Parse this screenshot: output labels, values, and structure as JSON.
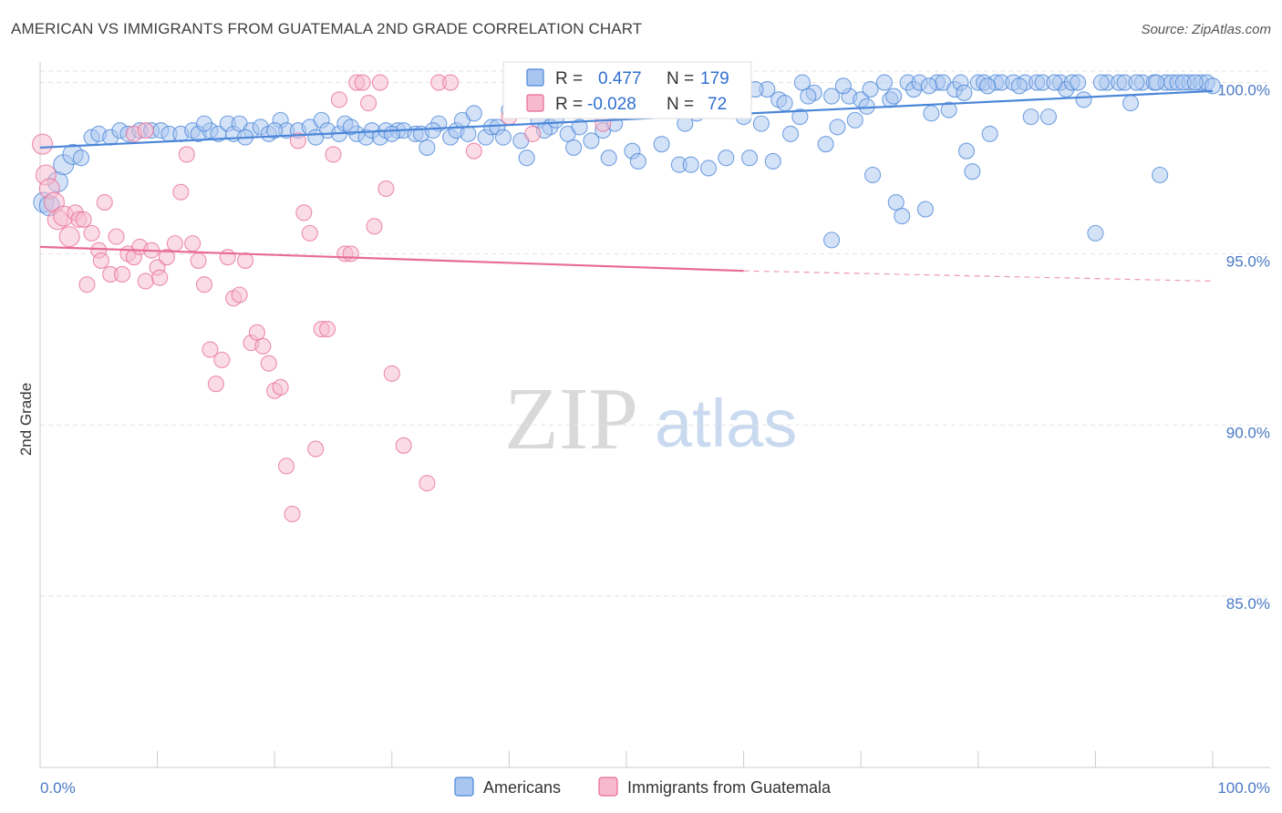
{
  "title": "AMERICAN VS IMMIGRANTS FROM GUATEMALA 2ND GRADE CORRELATION CHART",
  "source": "Source: ZipAtlas.com",
  "watermark": {
    "zip": "ZIP",
    "atlas": "atlas"
  },
  "legend_top": {
    "rows": [
      {
        "r_label": "R =",
        "r_value": "0.477",
        "n_label": "N =",
        "n_value": "179",
        "color": "#8bb2ea"
      },
      {
        "r_label": "R =",
        "r_value": "-0.028",
        "n_label": "N =",
        "n_value": "72",
        "color": "#f1a5bf"
      }
    ]
  },
  "chart_data": {
    "type": "scatter",
    "ylabel": "2nd Grade",
    "xlim": [
      0,
      100
    ],
    "ylim": [
      80.0,
      100.6
    ],
    "x_tick_labels": {
      "left": "0.0%",
      "right": "100.0%"
    },
    "y_ticks": [
      {
        "value": 100,
        "label": "100.0%"
      },
      {
        "value": 95,
        "label": "95.0%"
      },
      {
        "value": 90,
        "label": "90.0%"
      },
      {
        "value": 85,
        "label": "85.0%"
      }
    ],
    "grid": "horizontal dashed",
    "legend_position": "bottom",
    "series": [
      {
        "name": "Americans",
        "color": "#4a86d8",
        "fill": "#a9c6f0",
        "r": 0.477,
        "n": 179,
        "trend": {
          "x": [
            0,
            100
          ],
          "y": [
            98.1,
            99.75
          ]
        },
        "points": [
          [
            0.3,
            96.5
          ],
          [
            0.8,
            96.4
          ],
          [
            1.5,
            97.1
          ],
          [
            2,
            97.6
          ],
          [
            2.8,
            97.9
          ],
          [
            3.5,
            97.8
          ],
          [
            4.4,
            98.4
          ],
          [
            5,
            98.5
          ],
          [
            6,
            98.4
          ],
          [
            6.8,
            98.6
          ],
          [
            7.5,
            98.5
          ],
          [
            8.5,
            98.6
          ],
          [
            9.5,
            98.6
          ],
          [
            10.3,
            98.6
          ],
          [
            11,
            98.5
          ],
          [
            12,
            98.5
          ],
          [
            13,
            98.6
          ],
          [
            13.5,
            98.5
          ],
          [
            14.5,
            98.6
          ],
          [
            15.2,
            98.5
          ],
          [
            16,
            98.8
          ],
          [
            16.5,
            98.5
          ],
          [
            17,
            98.8
          ],
          [
            18,
            98.6
          ],
          [
            18.8,
            98.7
          ],
          [
            19.5,
            98.5
          ],
          [
            20.5,
            98.9
          ],
          [
            21,
            98.6
          ],
          [
            22,
            98.6
          ],
          [
            23,
            98.7
          ],
          [
            24,
            98.9
          ],
          [
            24.5,
            98.6
          ],
          [
            25.5,
            98.5
          ],
          [
            26,
            98.8
          ],
          [
            27,
            98.5
          ],
          [
            27.8,
            98.4
          ],
          [
            28.3,
            98.6
          ],
          [
            29,
            98.4
          ],
          [
            29.5,
            98.6
          ],
          [
            30.5,
            98.6
          ],
          [
            31,
            98.6
          ],
          [
            32,
            98.5
          ],
          [
            32.5,
            98.5
          ],
          [
            33,
            98.1
          ],
          [
            34,
            98.8
          ],
          [
            35,
            98.4
          ],
          [
            35.5,
            98.6
          ],
          [
            36,
            98.9
          ],
          [
            37,
            99.1
          ],
          [
            38,
            98.4
          ],
          [
            38.5,
            98.7
          ],
          [
            39,
            98.7
          ],
          [
            40,
            99.2
          ],
          [
            41,
            98.3
          ],
          [
            41.5,
            97.8
          ],
          [
            42,
            99.3
          ],
          [
            42.5,
            98.9
          ],
          [
            43.5,
            98.7
          ],
          [
            44,
            98.9
          ],
          [
            45,
            98.5
          ],
          [
            46,
            98.7
          ],
          [
            46.5,
            99.5
          ],
          [
            47,
            98.3
          ],
          [
            48,
            98.6
          ],
          [
            49,
            98.8
          ],
          [
            49.5,
            99.6
          ],
          [
            50.5,
            98.0
          ],
          [
            51,
            97.7
          ],
          [
            52,
            99.5
          ],
          [
            52.5,
            99.4
          ],
          [
            53,
            98.2
          ],
          [
            54,
            99.5
          ],
          [
            54.5,
            97.6
          ],
          [
            55,
            98.8
          ],
          [
            55.5,
            97.6
          ],
          [
            56,
            99.1
          ],
          [
            57,
            97.5
          ],
          [
            58,
            99.7
          ],
          [
            58.5,
            97.8
          ],
          [
            59,
            99.6
          ],
          [
            60,
            99.0
          ],
          [
            60.5,
            97.8
          ],
          [
            61.5,
            98.8
          ],
          [
            62,
            99.8
          ],
          [
            62.5,
            97.7
          ],
          [
            63,
            99.5
          ],
          [
            64,
            98.5
          ],
          [
            64.8,
            99.0
          ],
          [
            65,
            100.0
          ],
          [
            66,
            99.7
          ],
          [
            67,
            98.2
          ],
          [
            67.5,
            99.6
          ],
          [
            68,
            98.7
          ],
          [
            69,
            99.6
          ],
          [
            69.5,
            98.9
          ],
          [
            70,
            99.5
          ],
          [
            70.5,
            99.3
          ],
          [
            71,
            97.3
          ],
          [
            72,
            100.0
          ],
          [
            72.5,
            99.5
          ],
          [
            73,
            96.5
          ],
          [
            73.5,
            96.1
          ],
          [
            74,
            100.0
          ],
          [
            74.5,
            99.8
          ],
          [
            75,
            100.0
          ],
          [
            75.5,
            96.3
          ],
          [
            76,
            99.1
          ],
          [
            76.5,
            100.0
          ],
          [
            77,
            100.0
          ],
          [
            77.5,
            99.2
          ],
          [
            78,
            99.8
          ],
          [
            78.5,
            100.0
          ],
          [
            79,
            98.0
          ],
          [
            79.5,
            97.4
          ],
          [
            80,
            100.0
          ],
          [
            80.5,
            100.0
          ],
          [
            81,
            98.5
          ],
          [
            81.5,
            100.0
          ],
          [
            82,
            100.0
          ],
          [
            83,
            100.0
          ],
          [
            84,
            100.0
          ],
          [
            84.5,
            99.0
          ],
          [
            85,
            100.0
          ],
          [
            85.5,
            100.0
          ],
          [
            86,
            99.0
          ],
          [
            87,
            100.0
          ],
          [
            87.5,
            99.8
          ],
          [
            88,
            100.0
          ],
          [
            89,
            99.5
          ],
          [
            90,
            95.6
          ],
          [
            91,
            100.0
          ],
          [
            92,
            100.0
          ],
          [
            92.5,
            100.0
          ],
          [
            93,
            99.4
          ],
          [
            94,
            100.0
          ],
          [
            95,
            100.0
          ],
          [
            95.5,
            97.3
          ],
          [
            96,
            100.0
          ],
          [
            96.5,
            100.0
          ],
          [
            97,
            100.0
          ],
          [
            98,
            100.0
          ],
          [
            99,
            100.0
          ],
          [
            99.5,
            100.0
          ],
          [
            100,
            99.9
          ],
          [
            53.5,
            99.2
          ],
          [
            56.5,
            99.4
          ],
          [
            59.5,
            99.3
          ],
          [
            61,
            99.8
          ],
          [
            63.5,
            99.4
          ],
          [
            65.5,
            99.6
          ],
          [
            68.5,
            99.9
          ],
          [
            70.8,
            99.8
          ],
          [
            72.8,
            99.6
          ],
          [
            75.8,
            99.9
          ],
          [
            78.8,
            99.7
          ],
          [
            80.8,
            99.9
          ],
          [
            83.5,
            99.9
          ],
          [
            86.5,
            100.0
          ],
          [
            88.5,
            100.0
          ],
          [
            90.5,
            100.0
          ],
          [
            93.5,
            100.0
          ],
          [
            95.2,
            100.0
          ],
          [
            97.5,
            100.0
          ],
          [
            98.5,
            100.0
          ],
          [
            67.5,
            95.4
          ],
          [
            45.5,
            98.1
          ],
          [
            48.5,
            97.8
          ],
          [
            43,
            98.6
          ],
          [
            39.5,
            98.4
          ],
          [
            36.5,
            98.5
          ],
          [
            33.5,
            98.6
          ],
          [
            30,
            98.5
          ],
          [
            26.5,
            98.7
          ],
          [
            23.5,
            98.4
          ],
          [
            20,
            98.6
          ],
          [
            17.5,
            98.4
          ],
          [
            14,
            98.8
          ]
        ]
      },
      {
        "name": "Immigrants from Guatemala",
        "color": "#e86b97",
        "fill": "#f6b9ce",
        "r": -0.028,
        "n": 72,
        "trend": {
          "x": [
            0,
            60
          ],
          "y": [
            95.2,
            94.5
          ]
        },
        "trend_dashed": {
          "x": [
            60,
            100
          ],
          "y": [
            94.5,
            94.2
          ]
        },
        "points": [
          [
            0.2,
            98.2
          ],
          [
            0.5,
            97.3
          ],
          [
            0.8,
            96.9
          ],
          [
            1.2,
            96.5
          ],
          [
            1.5,
            96.0
          ],
          [
            2,
            96.1
          ],
          [
            2.5,
            95.5
          ],
          [
            3,
            96.2
          ],
          [
            3.3,
            96.0
          ],
          [
            3.7,
            96.0
          ],
          [
            4,
            94.1
          ],
          [
            4.4,
            95.6
          ],
          [
            5,
            95.1
          ],
          [
            5.2,
            94.8
          ],
          [
            5.5,
            96.5
          ],
          [
            6,
            94.4
          ],
          [
            6.5,
            95.5
          ],
          [
            7,
            94.4
          ],
          [
            7.5,
            95.0
          ],
          [
            8,
            94.9
          ],
          [
            8.5,
            95.2
          ],
          [
            9,
            94.2
          ],
          [
            9.5,
            95.1
          ],
          [
            10,
            94.6
          ],
          [
            10.2,
            94.3
          ],
          [
            10.8,
            94.9
          ],
          [
            11.5,
            95.3
          ],
          [
            12,
            96.8
          ],
          [
            12.5,
            97.9
          ],
          [
            13,
            95.3
          ],
          [
            13.5,
            94.8
          ],
          [
            14,
            94.1
          ],
          [
            14.5,
            92.2
          ],
          [
            15,
            91.2
          ],
          [
            15.5,
            91.9
          ],
          [
            16,
            94.9
          ],
          [
            16.5,
            93.7
          ],
          [
            17,
            93.8
          ],
          [
            17.5,
            94.8
          ],
          [
            18,
            92.4
          ],
          [
            18.5,
            92.7
          ],
          [
            19,
            92.3
          ],
          [
            19.5,
            91.8
          ],
          [
            20,
            91.0
          ],
          [
            20.5,
            91.1
          ],
          [
            21,
            88.8
          ],
          [
            21.5,
            87.4
          ],
          [
            22,
            98.3
          ],
          [
            22.5,
            96.2
          ],
          [
            23,
            95.6
          ],
          [
            23.5,
            89.3
          ],
          [
            24,
            92.8
          ],
          [
            24.5,
            92.8
          ],
          [
            25,
            97.9
          ],
          [
            25.5,
            99.5
          ],
          [
            26,
            95.0
          ],
          [
            26.5,
            95.0
          ],
          [
            27,
            100.0
          ],
          [
            27.5,
            100.0
          ],
          [
            28,
            99.4
          ],
          [
            28.5,
            95.8
          ],
          [
            29,
            100.0
          ],
          [
            29.5,
            96.9
          ],
          [
            30,
            91.5
          ],
          [
            31,
            89.4
          ],
          [
            33,
            88.3
          ],
          [
            34,
            100.0
          ],
          [
            35,
            100.0
          ],
          [
            37,
            98.0
          ],
          [
            40,
            99.0
          ],
          [
            42,
            98.5
          ],
          [
            44,
            100.0
          ],
          [
            46,
            100.0
          ],
          [
            48,
            98.8
          ],
          [
            8,
            98.5
          ],
          [
            9,
            98.6
          ]
        ]
      }
    ]
  },
  "legend_bottom": [
    {
      "label": "Americans",
      "color": "#8bb2ea"
    },
    {
      "label": "Immigrants from Guatemala",
      "color": "#f1a5bf"
    }
  ]
}
